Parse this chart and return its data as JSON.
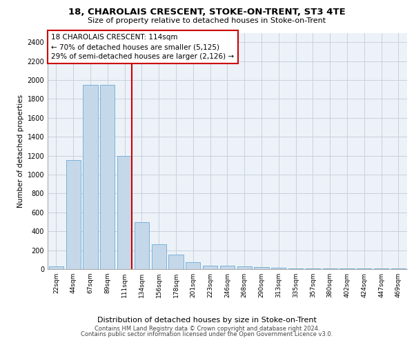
{
  "title1": "18, CHAROLAIS CRESCENT, STOKE-ON-TRENT, ST3 4TE",
  "title2": "Size of property relative to detached houses in Stoke-on-Trent",
  "xlabel": "Distribution of detached houses by size in Stoke-on-Trent",
  "ylabel": "Number of detached properties",
  "categories": [
    "22sqm",
    "44sqm",
    "67sqm",
    "89sqm",
    "111sqm",
    "134sqm",
    "156sqm",
    "178sqm",
    "201sqm",
    "223sqm",
    "246sqm",
    "268sqm",
    "290sqm",
    "313sqm",
    "335sqm",
    "357sqm",
    "380sqm",
    "402sqm",
    "424sqm",
    "447sqm",
    "469sqm"
  ],
  "values": [
    30,
    1150,
    1950,
    1950,
    1200,
    500,
    260,
    150,
    70,
    40,
    35,
    30,
    20,
    15,
    8,
    5,
    5,
    5,
    5,
    5,
    5
  ],
  "bar_color": "#c5d8ea",
  "bar_edge_color": "#6aaad4",
  "grid_color": "#c8d0dc",
  "background_color": "#edf2f8",
  "red_line_x": 4,
  "bar_width": 0.85,
  "annotation_text": "18 CHAROLAIS CRESCENT: 114sqm\n← 70% of detached houses are smaller (5,125)\n29% of semi-detached houses are larger (2,126) →",
  "footer1": "Contains HM Land Registry data © Crown copyright and database right 2024.",
  "footer2": "Contains public sector information licensed under the Open Government Licence v3.0.",
  "ylim": [
    0,
    2500
  ],
  "yticks": [
    0,
    200,
    400,
    600,
    800,
    1000,
    1200,
    1400,
    1600,
    1800,
    2000,
    2200,
    2400
  ]
}
